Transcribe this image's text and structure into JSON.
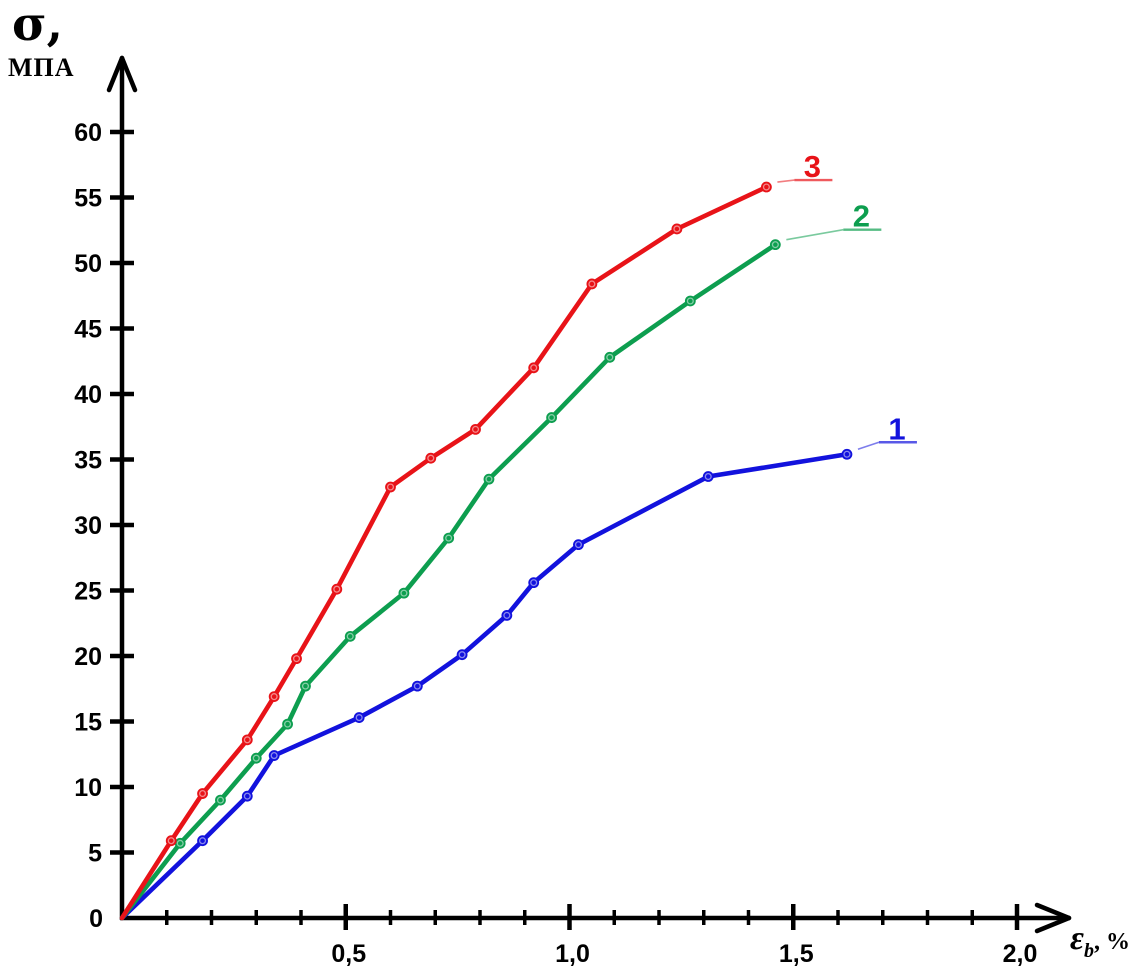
{
  "axis_titles": {
    "y_symbol": "σ,",
    "y_unit": "МПА",
    "x_symbol": "ε",
    "x_subscript": "b",
    "x_suffix": ", %"
  },
  "chart_data": {
    "type": "line",
    "title": "",
    "ylabel": "σ, МПА",
    "xlabel": "εb, %",
    "xlim": [
      0,
      2.2
    ],
    "ylim": [
      0,
      64
    ],
    "grid": false,
    "legend_position": "inline-curve-labels",
    "axis_color": "#000000",
    "x_major_ticks": [
      0.5,
      1.0,
      1.5,
      2.0
    ],
    "x_major_tick_labels": [
      "0,5",
      "1,0",
      "1,5",
      "2,0"
    ],
    "x_minor_tick_step": 0.1,
    "y_ticks": [
      5,
      10,
      15,
      20,
      25,
      30,
      35,
      40,
      45,
      50,
      55,
      60
    ],
    "origin_label": "0",
    "series": [
      {
        "name": "1",
        "color": "#1212dd",
        "label_offset": [
          50,
          -26
        ],
        "points": [
          [
            0,
            0
          ],
          [
            0.18,
            5.9
          ],
          [
            0.28,
            9.3
          ],
          [
            0.34,
            12.4
          ],
          [
            0.53,
            15.3
          ],
          [
            0.66,
            17.7
          ],
          [
            0.76,
            20.1
          ],
          [
            0.86,
            23.1
          ],
          [
            0.92,
            25.6
          ],
          [
            1.02,
            28.5
          ],
          [
            1.31,
            33.7
          ],
          [
            1.62,
            35.4
          ]
        ]
      },
      {
        "name": "2",
        "color": "#0d9e4f",
        "label_offset": [
          86,
          -29
        ],
        "points": [
          [
            0,
            0
          ],
          [
            0.13,
            5.7
          ],
          [
            0.22,
            9.0
          ],
          [
            0.3,
            12.2
          ],
          [
            0.37,
            14.8
          ],
          [
            0.41,
            17.7
          ],
          [
            0.51,
            21.5
          ],
          [
            0.63,
            24.8
          ],
          [
            0.73,
            29.0
          ],
          [
            0.82,
            33.5
          ],
          [
            0.96,
            38.2
          ],
          [
            1.09,
            42.8
          ],
          [
            1.27,
            47.1
          ],
          [
            1.46,
            51.4
          ]
        ]
      },
      {
        "name": "3",
        "color": "#e81318",
        "label_offset": [
          46,
          -21
        ],
        "points": [
          [
            0,
            0
          ],
          [
            0.11,
            5.9
          ],
          [
            0.18,
            9.5
          ],
          [
            0.28,
            13.6
          ],
          [
            0.34,
            16.9
          ],
          [
            0.39,
            19.8
          ],
          [
            0.48,
            25.1
          ],
          [
            0.6,
            32.9
          ],
          [
            0.69,
            35.1
          ],
          [
            0.79,
            37.3
          ],
          [
            0.92,
            42.0
          ],
          [
            1.05,
            48.4
          ],
          [
            1.24,
            52.6
          ],
          [
            1.44,
            55.8
          ]
        ]
      }
    ]
  }
}
